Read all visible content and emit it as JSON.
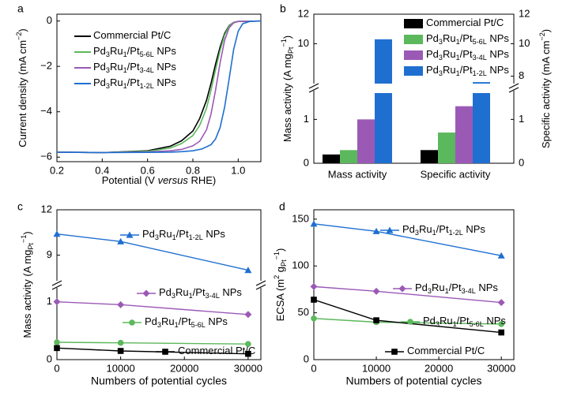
{
  "colors": {
    "pt": "#000000",
    "l56": "#5cb85c",
    "l34": "#9b59b6",
    "l12": "#1f6fd1"
  },
  "chart_data": [
    {
      "panel": "a",
      "type": "line",
      "xlabel": "Potential (V versus RHE)",
      "ylabel": "Current density (mA cm^-2)",
      "xlim": [
        0.2,
        1.1
      ],
      "ylim": [
        -6.2,
        0.3
      ],
      "xticks": [
        "0.2",
        "0.4",
        "0.6",
        "0.8",
        "1.0"
      ],
      "yticks": [
        "0",
        "-2",
        "-4",
        "-6"
      ],
      "legend": "top-left",
      "series": [
        {
          "name": "Commercial Pt/C",
          "key": "pt",
          "x": [
            0.2,
            0.4,
            0.6,
            0.7,
            0.75,
            0.8,
            0.83,
            0.86,
            0.88,
            0.9,
            0.92,
            0.94,
            0.96,
            0.98,
            1.0,
            1.1
          ],
          "y": [
            -5.78,
            -5.8,
            -5.72,
            -5.52,
            -5.28,
            -4.85,
            -4.3,
            -3.5,
            -2.75,
            -1.9,
            -1.15,
            -0.55,
            -0.2,
            -0.06,
            -0.02,
            0
          ]
        },
        {
          "name": "Pd3Ru1/Pt5-6L NPs",
          "key": "l56",
          "x": [
            0.2,
            0.4,
            0.6,
            0.7,
            0.75,
            0.8,
            0.83,
            0.86,
            0.88,
            0.9,
            0.92,
            0.94,
            0.96,
            0.98,
            1.0,
            1.1
          ],
          "y": [
            -5.78,
            -5.8,
            -5.74,
            -5.6,
            -5.4,
            -5.05,
            -4.6,
            -3.85,
            -3.05,
            -2.15,
            -1.3,
            -0.62,
            -0.22,
            -0.06,
            -0.02,
            0
          ]
        },
        {
          "name": "Pd3Ru1/Pt3-4L NPs",
          "key": "l34",
          "x": [
            0.2,
            0.4,
            0.6,
            0.7,
            0.75,
            0.8,
            0.83,
            0.86,
            0.88,
            0.9,
            0.92,
            0.94,
            0.96,
            0.98,
            1.0,
            1.1
          ],
          "y": [
            -5.78,
            -5.8,
            -5.77,
            -5.72,
            -5.66,
            -5.5,
            -5.3,
            -4.8,
            -4.1,
            -3.05,
            -1.85,
            -0.85,
            -0.3,
            -0.08,
            -0.02,
            0
          ]
        },
        {
          "name": "Pd3Ru1/Pt1-2L NPs",
          "key": "l12",
          "x": [
            0.2,
            0.4,
            0.6,
            0.7,
            0.75,
            0.8,
            0.84,
            0.88,
            0.9,
            0.92,
            0.94,
            0.96,
            0.98,
            1.0,
            1.02,
            1.05,
            1.1
          ],
          "y": [
            -5.78,
            -5.8,
            -5.79,
            -5.78,
            -5.76,
            -5.72,
            -5.64,
            -5.45,
            -5.2,
            -4.7,
            -3.8,
            -2.55,
            -1.25,
            -0.45,
            -0.12,
            -0.02,
            0
          ]
        }
      ]
    },
    {
      "panel": "b",
      "type": "bar",
      "categories": [
        "Mass activity",
        "Specific activity"
      ],
      "ylabel": "Mass activity (A mg_Pt^-1)",
      "y2label": "Specific activity (mA cm^-2)",
      "axis_break": true,
      "yticks_left": [
        "0",
        "1",
        "10",
        "12"
      ],
      "yticks_right": [
        "0",
        "1",
        "8",
        "10",
        "12"
      ],
      "legend": "top-right",
      "series": [
        {
          "name": "Commercial Pt/C",
          "key": "pt",
          "values": [
            0.2,
            0.3
          ]
        },
        {
          "name": "Pd3Ru1/Pt5-6L NPs",
          "key": "l56",
          "values": [
            0.3,
            0.7
          ]
        },
        {
          "name": "Pd3Ru1/Pt3-4L NPs",
          "key": "l34",
          "values": [
            1.0,
            1.3
          ]
        },
        {
          "name": "Pd3Ru1/Pt1-2L NPs",
          "key": "l12",
          "values": [
            10.3,
            7.4
          ]
        }
      ]
    },
    {
      "panel": "c",
      "type": "line",
      "xlabel": "Numbers of potential cycles",
      "ylabel": "Mass activity (A mg_Pt^-1)",
      "axis_break": true,
      "xticks": [
        "0",
        "10000",
        "20000",
        "30000"
      ],
      "yticks": [
        "0",
        "1",
        "9",
        "12"
      ],
      "x": [
        0,
        10000,
        30000
      ],
      "series": [
        {
          "name": "Pd3Ru1/Pt1-2L NPs",
          "key": "l12",
          "marker": "triangle",
          "values": [
            10.4,
            9.9,
            8.0
          ]
        },
        {
          "name": "Pd3Ru1/Pt3-4L NPs",
          "key": "l34",
          "marker": "diamond",
          "values": [
            1.0,
            0.95,
            0.78
          ]
        },
        {
          "name": "Pd3Ru1/Pt5-6L NPs",
          "key": "l56",
          "marker": "circle",
          "values": [
            0.3,
            0.29,
            0.27
          ]
        },
        {
          "name": "Commercial Pt/C",
          "key": "pt",
          "marker": "square",
          "values": [
            0.2,
            0.15,
            0.1
          ]
        }
      ]
    },
    {
      "panel": "d",
      "type": "line",
      "xlabel": "Numbers of potential cycles",
      "ylabel": "ECSA (m^2 g_Pt^-1)",
      "xticks": [
        "0",
        "10000",
        "20000",
        "30000"
      ],
      "yticks": [
        "0",
        "50",
        "100",
        "150"
      ],
      "xlim": [
        0,
        32000
      ],
      "ylim": [
        0,
        160
      ],
      "x": [
        0,
        10000,
        30000
      ],
      "series": [
        {
          "name": "Pd3Ru1/Pt1-2L NPs",
          "key": "l12",
          "marker": "triangle",
          "values": [
            145,
            137,
            111
          ]
        },
        {
          "name": "Pd3Ru1/Pt3-4L NPs",
          "key": "l34",
          "marker": "diamond",
          "values": [
            78,
            73,
            61
          ]
        },
        {
          "name": "Pd3Ru1/Pt5-6L NPs",
          "key": "l56",
          "marker": "circle",
          "values": [
            44,
            40,
            38
          ]
        },
        {
          "name": "Commercial Pt/C",
          "key": "pt",
          "marker": "square",
          "values": [
            64,
            42,
            29
          ]
        }
      ]
    }
  ]
}
